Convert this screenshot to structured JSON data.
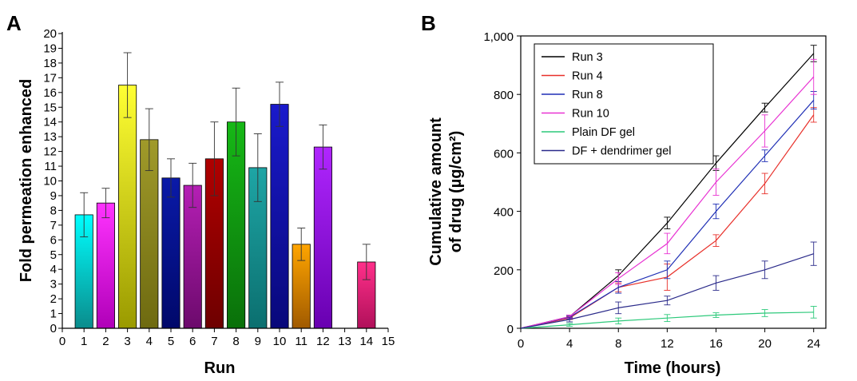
{
  "chart_data": [
    {
      "panel": "A",
      "type": "bar",
      "xlabel": "Run",
      "ylabel": "Fold permeation enhanced",
      "x_ticks": [
        "0",
        "1",
        "2",
        "3",
        "4",
        "5",
        "6",
        "7",
        "8",
        "9",
        "10",
        "11",
        "12",
        "13",
        "14",
        "15"
      ],
      "y_ticks": [
        "0",
        "1",
        "2",
        "3",
        "4",
        "5",
        "6",
        "7",
        "8",
        "9",
        "10",
        "11",
        "12",
        "13",
        "14",
        "15",
        "16",
        "17",
        "18",
        "19",
        "20"
      ],
      "xlim": [
        0,
        15
      ],
      "ylim": [
        0,
        20
      ],
      "grid": false,
      "bars": [
        {
          "run": 1,
          "value": 7.7,
          "error": 1.5,
          "color_top": "#00ffff",
          "color_bottom": "#0a8c8c"
        },
        {
          "run": 2,
          "value": 8.5,
          "error": 1.0,
          "color_top": "#ff33ff",
          "color_bottom": "#b000b8"
        },
        {
          "run": 3,
          "value": 16.5,
          "error": 2.2,
          "color_top": "#ffff33",
          "color_bottom": "#9a9a00"
        },
        {
          "run": 4,
          "value": 12.8,
          "error": 2.1,
          "color_top": "#a09a2a",
          "color_bottom": "#6e6a10"
        },
        {
          "run": 5,
          "value": 10.2,
          "error": 1.3,
          "color_top": "#0a1aa8",
          "color_bottom": "#00086a"
        },
        {
          "run": 6,
          "value": 9.7,
          "error": 1.5,
          "color_top": "#b51fb5",
          "color_bottom": "#6c0a6c"
        },
        {
          "run": 7,
          "value": 11.5,
          "error": 2.5,
          "color_top": "#b00000",
          "color_bottom": "#6e0000"
        },
        {
          "run": 8,
          "value": 14.0,
          "error": 2.3,
          "color_top": "#16b816",
          "color_bottom": "#0a700a"
        },
        {
          "run": 9,
          "value": 10.9,
          "error": 2.3,
          "color_top": "#1ea5a5",
          "color_bottom": "#0b6f6f"
        },
        {
          "run": 10,
          "value": 15.2,
          "error": 1.5,
          "color_top": "#1a1acc",
          "color_bottom": "#08087a"
        },
        {
          "run": 11,
          "value": 5.7,
          "error": 1.1,
          "color_top": "#ffa500",
          "color_bottom": "#a05a00"
        },
        {
          "run": 12,
          "value": 12.3,
          "error": 1.5,
          "color_top": "#b026ff",
          "color_bottom": "#6800b0"
        },
        {
          "run": 14,
          "value": 4.5,
          "error": 1.2,
          "color_top": "#ff2f8a",
          "color_bottom": "#b0105a"
        }
      ]
    },
    {
      "panel": "B",
      "type": "line",
      "xlabel": "Time (hours)",
      "ylabel_line1": "Cumulative amount",
      "ylabel_line2": "of drug (µg/cm²)",
      "x": [
        0,
        4,
        8,
        12,
        16,
        20,
        24
      ],
      "x_ticks": [
        "0",
        "4",
        "8",
        "12",
        "16",
        "20",
        "24"
      ],
      "y_ticks": [
        {
          "value": 0,
          "label": "0"
        },
        {
          "value": 200,
          "label": "200"
        },
        {
          "value": 400,
          "label": "400"
        },
        {
          "value": 600,
          "label": "600"
        },
        {
          "value": 800,
          "label": "800"
        },
        {
          "value": 1000,
          "label": "1,000"
        }
      ],
      "xlim": [
        0,
        25
      ],
      "ylim": [
        0,
        1000
      ],
      "grid": false,
      "legend_position": "top-left",
      "series": [
        {
          "name": "Run 3",
          "color": "#000000",
          "values": [
            0,
            40,
            180,
            360,
            565,
            755,
            940
          ],
          "errors": [
            0,
            5,
            20,
            20,
            25,
            15,
            28
          ]
        },
        {
          "name": "Run 4",
          "color": "#e8302a",
          "values": [
            0,
            35,
            140,
            175,
            300,
            495,
            730
          ],
          "errors": [
            0,
            5,
            15,
            45,
            20,
            35,
            25
          ]
        },
        {
          "name": "Run 8",
          "color": "#1f2fb5",
          "values": [
            0,
            38,
            140,
            200,
            400,
            590,
            780
          ],
          "errors": [
            0,
            5,
            20,
            30,
            25,
            20,
            30
          ]
        },
        {
          "name": "Run 10",
          "color": "#e832d2",
          "values": [
            0,
            40,
            170,
            290,
            500,
            675,
            860
          ],
          "errors": [
            0,
            5,
            20,
            35,
            45,
            55,
            60
          ]
        },
        {
          "name": "Plain DF gel",
          "color": "#2cc97a",
          "values": [
            0,
            12,
            25,
            35,
            45,
            52,
            55
          ],
          "errors": [
            0,
            5,
            10,
            12,
            8,
            12,
            20
          ]
        },
        {
          "name": "DF + dendrimer gel",
          "color": "#2a2a8a",
          "values": [
            0,
            30,
            70,
            95,
            155,
            200,
            255
          ],
          "errors": [
            0,
            8,
            20,
            15,
            25,
            30,
            40
          ]
        }
      ]
    }
  ]
}
